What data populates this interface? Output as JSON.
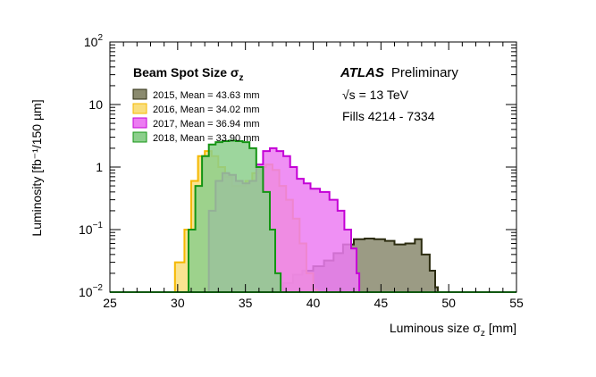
{
  "chart_data": {
    "type": "area",
    "title": "Beam Spot Size σ",
    "title_subscript": "z",
    "xlabel": "Luminous size σ",
    "xlabel_subscript": "z",
    "xlabel_unit": "[mm]",
    "ylabel": "Luminosity [fb⁻¹/150 µm]",
    "xlim": [
      25,
      55
    ],
    "ylim": [
      0.01,
      100
    ],
    "yscale": "log",
    "legend_position": "top-left",
    "x_ticks": [
      25,
      30,
      35,
      40,
      45,
      50,
      55
    ],
    "y_ticks": [
      {
        "value": 0.01,
        "base": "10",
        "exp": "−2"
      },
      {
        "value": 0.1,
        "base": "10",
        "exp": "−1"
      },
      {
        "value": 1,
        "base": "1",
        "exp": ""
      },
      {
        "value": 10,
        "base": "10",
        "exp": ""
      },
      {
        "value": 100,
        "base": "10",
        "exp": "2"
      }
    ],
    "annotations": {
      "experiment": "ATLAS",
      "status": "Preliminary",
      "energy_prefix": "√s",
      "energy": " = 13 TeV",
      "fills": "Fills 4214 - 7334"
    },
    "series": [
      {
        "name": "2015, Mean = 43.63 mm",
        "fill": "#8a8a6e",
        "stroke": "#2c2c10",
        "x": [
          37.2,
          37.8,
          38.5,
          39.2,
          40.0,
          40.8,
          41.5,
          42.2,
          43.0,
          43.8,
          44.5,
          45.3,
          46.0,
          46.8,
          47.5,
          48.0,
          48.6,
          49.0,
          49.2
        ],
        "y": [
          0.01,
          0.014,
          0.019,
          0.022,
          0.026,
          0.032,
          0.042,
          0.058,
          0.07,
          0.072,
          0.07,
          0.066,
          0.058,
          0.06,
          0.07,
          0.04,
          0.022,
          0.012,
          0.01
        ]
      },
      {
        "name": "2016, Mean = 34.02 mm",
        "fill": "#f9de7c",
        "stroke": "#f5b800",
        "x": [
          29.3,
          29.8,
          30.5,
          31.0,
          31.5,
          32.0,
          32.5,
          33.0,
          33.5,
          34.0,
          34.5,
          35.0,
          35.5,
          36.0,
          36.5,
          37.0,
          37.5,
          38.0,
          38.5,
          39.0,
          39.5,
          40.0,
          40.3
        ],
        "y": [
          0.01,
          0.03,
          0.1,
          0.6,
          1.5,
          1.8,
          1.5,
          1.0,
          0.7,
          0.5,
          0.5,
          0.6,
          0.8,
          1.0,
          1.1,
          0.9,
          0.5,
          0.3,
          0.15,
          0.06,
          0.02,
          0.011,
          0.01
        ]
      },
      {
        "name": "2017, Mean = 36.94 mm",
        "fill": "#ec7cf2",
        "stroke": "#c400d6",
        "x": [
          31.9,
          32.3,
          32.8,
          33.3,
          33.8,
          34.3,
          34.8,
          35.3,
          35.8,
          36.3,
          36.8,
          37.3,
          37.8,
          38.3,
          38.8,
          39.3,
          39.8,
          40.5,
          41.2,
          41.8,
          42.3,
          42.8,
          43.2,
          43.4
        ],
        "y": [
          0.01,
          0.2,
          0.6,
          0.8,
          0.75,
          0.6,
          0.55,
          0.6,
          1.1,
          1.8,
          2.0,
          1.8,
          1.5,
          1.0,
          0.65,
          0.55,
          0.45,
          0.4,
          0.3,
          0.2,
          0.1,
          0.05,
          0.02,
          0.01
        ]
      },
      {
        "name": "2018, Mean = 33.90 mm",
        "fill": "#8ccf8c",
        "stroke": "#139413",
        "x": [
          30.2,
          30.8,
          31.3,
          31.8,
          32.3,
          32.8,
          33.3,
          33.8,
          34.3,
          34.8,
          35.3,
          35.8,
          36.3,
          36.8,
          37.2,
          37.6
        ],
        "y": [
          0.01,
          0.1,
          0.5,
          1.5,
          2.3,
          2.5,
          2.6,
          2.65,
          2.6,
          2.5,
          2.0,
          1.0,
          0.4,
          0.1,
          0.02,
          0.01
        ]
      }
    ]
  }
}
